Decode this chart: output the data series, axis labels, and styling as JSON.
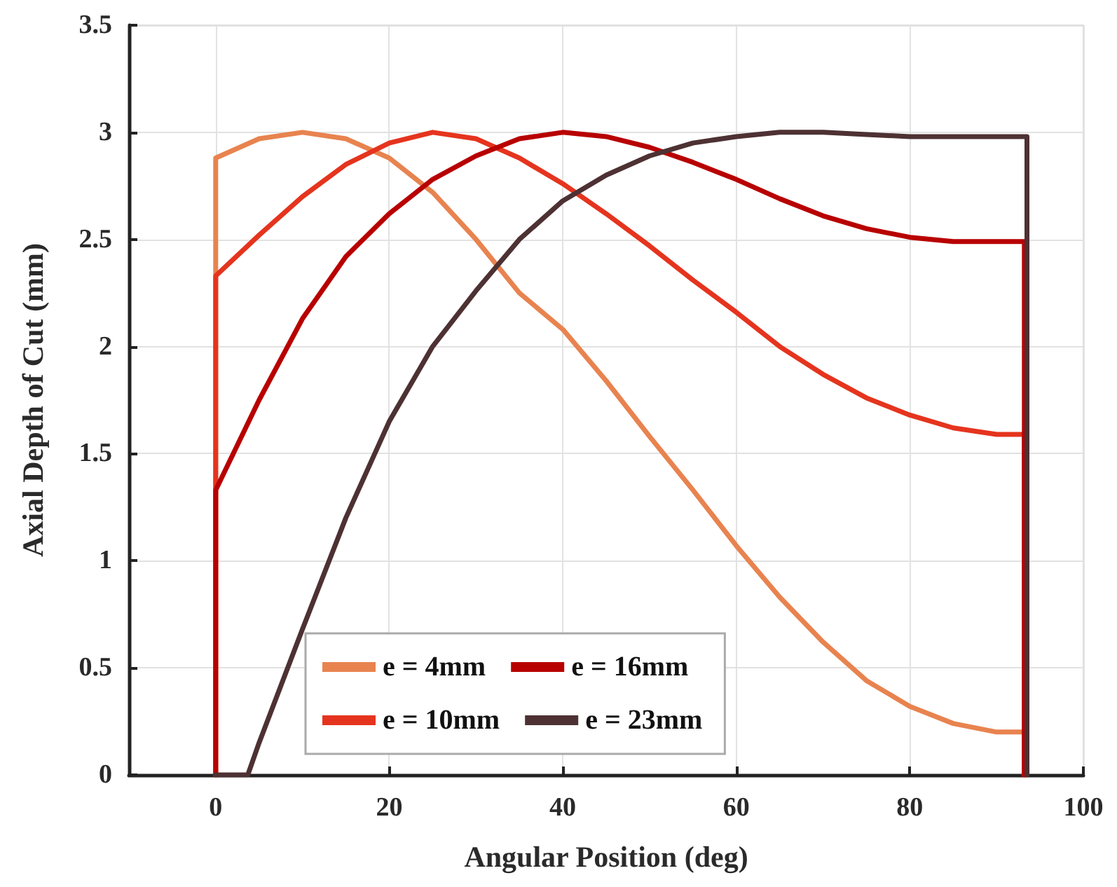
{
  "chart_data": {
    "type": "line",
    "xlabel": "Angular Position (deg)",
    "ylabel": "Axial Depth of Cut (mm)",
    "xlim": [
      -10,
      100
    ],
    "xticks": [
      0,
      20,
      40,
      60,
      80,
      100
    ],
    "ylim": [
      0,
      3.5
    ],
    "yticks": [
      0,
      0.5,
      1,
      1.5,
      2,
      2.5,
      3,
      3.5
    ],
    "grid": true,
    "legend": "bottom",
    "marker": "none",
    "line_style": "solid",
    "series": [
      {
        "name": "e = 4mm",
        "color": "#e8834f",
        "x": [
          0,
          0,
          5,
          10,
          15,
          20,
          25,
          30,
          35,
          40,
          45,
          50,
          55,
          60,
          65,
          70,
          75,
          80,
          85,
          90,
          93.2,
          93.2
        ],
        "values": [
          0,
          2.88,
          2.97,
          3.0,
          2.97,
          2.88,
          2.72,
          2.5,
          2.25,
          2.08,
          1.84,
          1.58,
          1.33,
          1.07,
          0.83,
          0.62,
          0.44,
          0.32,
          0.24,
          0.2,
          0.2,
          0
        ]
      },
      {
        "name": "e = 10mm",
        "color": "#e5341e",
        "x": [
          0,
          0,
          5,
          10,
          15,
          20,
          25,
          30,
          35,
          40,
          45,
          50,
          55,
          60,
          65,
          70,
          75,
          80,
          85,
          90,
          93.2,
          93.2
        ],
        "values": [
          0,
          2.33,
          2.52,
          2.7,
          2.85,
          2.95,
          3.0,
          2.97,
          2.88,
          2.76,
          2.62,
          2.47,
          2.31,
          2.16,
          2.0,
          1.87,
          1.76,
          1.68,
          1.62,
          1.59,
          1.59,
          0
        ]
      },
      {
        "name": "e = 16mm",
        "color": "#b80000",
        "x": [
          0,
          0,
          5,
          10,
          15,
          20,
          25,
          30,
          35,
          40,
          45,
          50,
          55,
          60,
          65,
          70,
          75,
          80,
          85,
          90,
          93.2,
          93.2
        ],
        "values": [
          0,
          1.33,
          1.75,
          2.13,
          2.42,
          2.62,
          2.78,
          2.89,
          2.97,
          3.0,
          2.98,
          2.93,
          2.86,
          2.78,
          2.69,
          2.61,
          2.55,
          2.51,
          2.49,
          2.49,
          2.49,
          0
        ]
      },
      {
        "name": "e = 23mm",
        "color": "#4d3133",
        "x": [
          0,
          3.7,
          5,
          10,
          15,
          20,
          25,
          30,
          35,
          40,
          45,
          50,
          55,
          60,
          65,
          70,
          75,
          80,
          85,
          90,
          93.5,
          93.5
        ],
        "values": [
          0,
          0,
          0.15,
          0.68,
          1.2,
          1.65,
          2.0,
          2.26,
          2.5,
          2.68,
          2.8,
          2.89,
          2.95,
          2.98,
          3.0,
          3.0,
          2.99,
          2.98,
          2.98,
          2.98,
          2.98,
          0
        ]
      }
    ]
  }
}
